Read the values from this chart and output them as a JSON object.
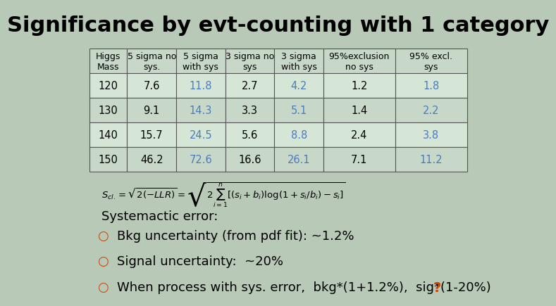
{
  "title": "Significance by evt-counting with 1 category",
  "title_fontsize": 22,
  "title_fontweight": "bold",
  "bg_color": "#b8c9b8",
  "table_header": [
    "Higgs\nMass",
    "5 sigma no\nsys.",
    "5 sigma\nwith sys",
    "3 sigma no\nsys",
    "3 sigma\nwith sys",
    "95%exclusion\nno sys",
    "95% excl.\nsys"
  ],
  "table_data": [
    [
      "120",
      "7.6",
      "11.8",
      "2.7",
      "4.2",
      "1.2",
      "1.8"
    ],
    [
      "130",
      "9.1",
      "14.3",
      "3.3",
      "5.1",
      "1.4",
      "2.2"
    ],
    [
      "140",
      "15.7",
      "24.5",
      "5.6",
      "8.8",
      "2.4",
      "3.8"
    ],
    [
      "150",
      "46.2",
      "72.6",
      "16.6",
      "26.1",
      "7.1",
      "11.2"
    ]
  ],
  "blue_cols": [
    2,
    4,
    6
  ],
  "blue_color": "#4a7bbf",
  "normal_color": "#000000",
  "bullet_color": "#cc4400",
  "bullet_char": "○",
  "bullets": [
    "Bkg uncertainty (from pdf fit): ~1.2%",
    "Signal uncertainty:  ~20%",
    "When process with sys. error,  bkg*(1+1.2%),  sig*(1-20%)"
  ],
  "last_bullet_suffix": " ?",
  "last_bullet_suffix_color": "#cc4400",
  "systemactic_label": "Systemactic error:",
  "table_border_color": "#555555",
  "table_cell_bg_even": "#d6e6d6",
  "table_cell_bg_odd": "#c8d8c8"
}
